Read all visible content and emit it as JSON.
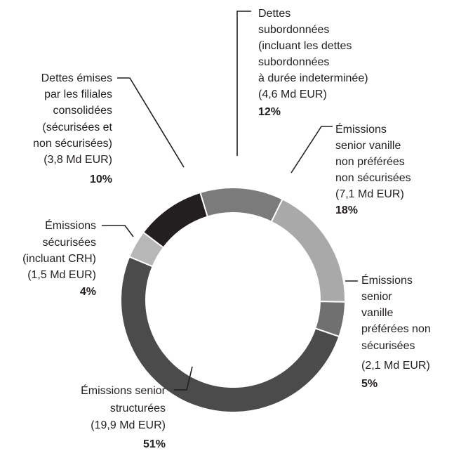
{
  "chart_data": {
    "type": "donut",
    "labels": [
      [
        "Dettes",
        "subordonnées",
        "(incluant les dettes",
        "subordonnées",
        "à durée indeterminée)",
        "(4,6 Md EUR)"
      ],
      [
        "Émissions",
        "senior vanille",
        "non préférées",
        "non sécurisées",
        "(7,1 Md EUR)"
      ],
      [
        "Émissions",
        "senior",
        "vanille",
        "préférées non",
        "sécurisées",
        "(2,1 Md EUR)"
      ],
      [
        "Émissions senior",
        "structurées",
        "(19,9 Md EUR)"
      ],
      [
        "Émissions",
        "sécurisées",
        "(incluant CRH)",
        "(1,5 Md EUR)"
      ],
      [
        "Dettes émises",
        "par les filiales",
        "consolidées",
        "(sécurisées et",
        "non sécurisées)",
        "(3,8 Md EUR)"
      ]
    ],
    "values": [
      12,
      18,
      5,
      51,
      4,
      10
    ],
    "value_labels": [
      "12%",
      "18%",
      "5%",
      "51%",
      "4%",
      "10%"
    ],
    "colors": [
      "#7b7b7b",
      "#a9a9a9",
      "#707070",
      "#4b4b4b",
      "#b7b7b7",
      "#231f20"
    ]
  }
}
